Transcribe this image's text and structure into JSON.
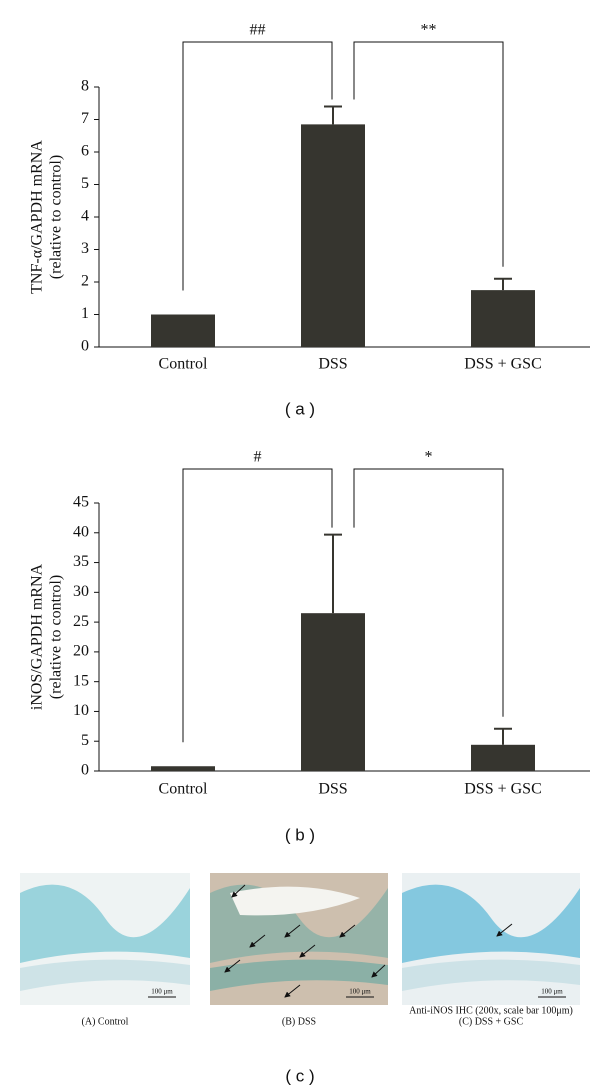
{
  "chart_data": [
    {
      "type": "bar",
      "panel_label": "( a )",
      "ylabel": [
        "TNF-α/GAPDH mRNA",
        "(relative to control)"
      ],
      "categories": [
        "Control",
        "DSS",
        "DSS + GSC"
      ],
      "values": [
        1.0,
        6.85,
        1.75
      ],
      "errors": [
        null,
        0.55,
        0.35
      ],
      "color": "#36352f",
      "ylim": [
        0,
        8
      ],
      "yticks": [
        0,
        1,
        2,
        3,
        4,
        5,
        6,
        7,
        8
      ],
      "annotations": [
        "##",
        "**"
      ]
    },
    {
      "type": "bar",
      "panel_label": "( b )",
      "ylabel": [
        "iNOS/GAPDH mRNA",
        "(relative to control)"
      ],
      "categories": [
        "Control",
        "DSS",
        "DSS + GSC"
      ],
      "values": [
        0.8,
        26.5,
        4.4
      ],
      "errors": [
        null,
        13.2,
        2.7
      ],
      "color": "#36352f",
      "ylim": [
        0,
        45
      ],
      "yticks": [
        0,
        5,
        10,
        15,
        20,
        25,
        30,
        35,
        40,
        45
      ],
      "annotations": [
        "#",
        "*"
      ]
    }
  ],
  "images": {
    "panel_label": "( c )",
    "note": "Anti-iNOS IHC (200x, scale bar 100μm)",
    "panels": [
      {
        "caption": "(A) Control",
        "scale_label": "100 μm"
      },
      {
        "caption": "(B) DSS",
        "scale_label": "100 μm"
      },
      {
        "caption": "(C) DSS + GSC",
        "scale_label": "100 μm"
      }
    ]
  }
}
